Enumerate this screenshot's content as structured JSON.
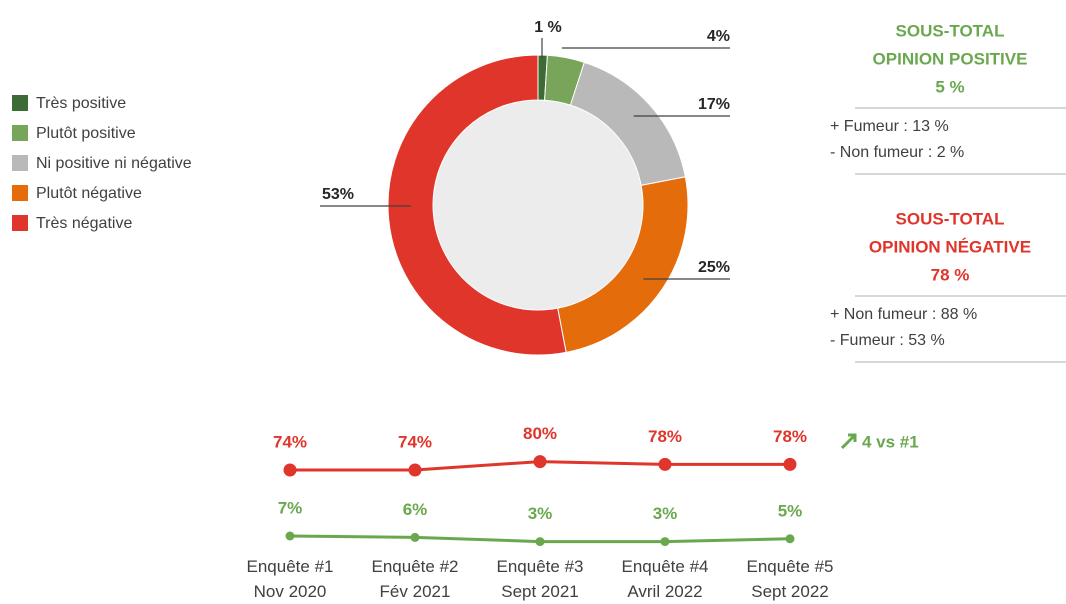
{
  "chart_data": [
    {
      "type": "pie",
      "categories": [
        "Très positive",
        "Plutôt positive",
        "Ni positive ni négative",
        "Plutôt négative",
        "Très négative"
      ],
      "values": [
        1,
        4,
        17,
        25,
        53
      ],
      "value_labels": [
        "1 %",
        "4%",
        "17%",
        "25%",
        "53%"
      ],
      "colors": [
        "#3d6b35",
        "#78a55a",
        "#b9b9b9",
        "#e46c0a",
        "#e0352b"
      ]
    },
    {
      "type": "line",
      "categories": [
        "Enquête #1\nNov 2020",
        "Enquête #2\nFév 2021",
        "Enquête #3\nSept 2021",
        "Enquête #4\nAvril 2022",
        "Enquête #5\nSept 2022"
      ],
      "series": [
        {
          "name": "Opinion négative",
          "color": "#e0352b",
          "values": [
            74,
            74,
            80,
            78,
            78
          ],
          "value_labels": [
            "74%",
            "74%",
            "80%",
            "78%",
            "78%"
          ]
        },
        {
          "name": "Opinion positive",
          "color": "#6aa84f",
          "values": [
            7,
            6,
            3,
            3,
            5
          ],
          "value_labels": [
            "7%",
            "6%",
            "3%",
            "3%",
            "5%"
          ]
        }
      ],
      "annotation": "4 vs #1"
    }
  ],
  "panels": [
    {
      "title": [
        "SOUS-TOTAL",
        "OPINION POSITIVE"
      ],
      "value": "5 %",
      "color": "#6aa84f",
      "items": [
        "+ Fumeur : 13 %",
        "- Non fumeur : 2 %"
      ]
    },
    {
      "title": [
        "SOUS-TOTAL",
        "OPINION NÉGATIVE"
      ],
      "value": "78 %",
      "color": "#e0352b",
      "items": [
        "+ Non fumeur : 88 %",
        "- Fumeur : 53 %"
      ]
    }
  ]
}
